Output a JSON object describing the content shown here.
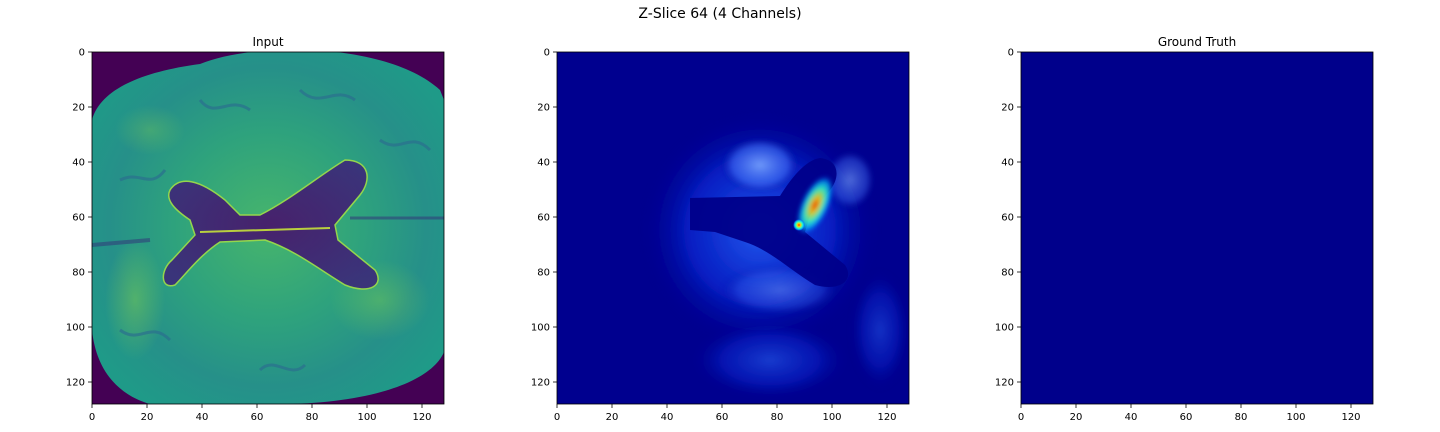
{
  "figure": {
    "suptitle": "Z-Slice 64 (4 Channels)"
  },
  "chart_data": [
    {
      "type": "heatmap",
      "title": "Input",
      "colormap": "viridis",
      "xlim": [
        0,
        128
      ],
      "ylim": [
        128,
        0
      ],
      "xticks": [
        0,
        20,
        40,
        60,
        80,
        100,
        120
      ],
      "yticks": [
        0,
        20,
        40,
        60,
        80,
        100,
        120
      ],
      "xlabel": "",
      "ylabel": "",
      "grid": false,
      "content": "axial brain MRI slice"
    },
    {
      "type": "heatmap",
      "title": "",
      "colormap": "jet",
      "xlim": [
        0,
        128
      ],
      "ylim": [
        128,
        0
      ],
      "xticks": [
        0,
        20,
        40,
        60,
        80,
        100,
        120
      ],
      "yticks": [
        0,
        20,
        40,
        60,
        80,
        100,
        120
      ],
      "xlabel": "",
      "ylabel": "",
      "grid": false,
      "content": "predicted probability map, peak near (87, 63)"
    },
    {
      "type": "heatmap",
      "title": "Ground Truth",
      "colormap": "jet",
      "xlim": [
        0,
        128
      ],
      "ylim": [
        128,
        0
      ],
      "xticks": [
        0,
        20,
        40,
        60,
        80,
        100,
        120
      ],
      "yticks": [
        0,
        20,
        40,
        60,
        80,
        100,
        120
      ],
      "xlabel": "",
      "ylabel": "",
      "grid": false,
      "content": "all zeros"
    }
  ]
}
